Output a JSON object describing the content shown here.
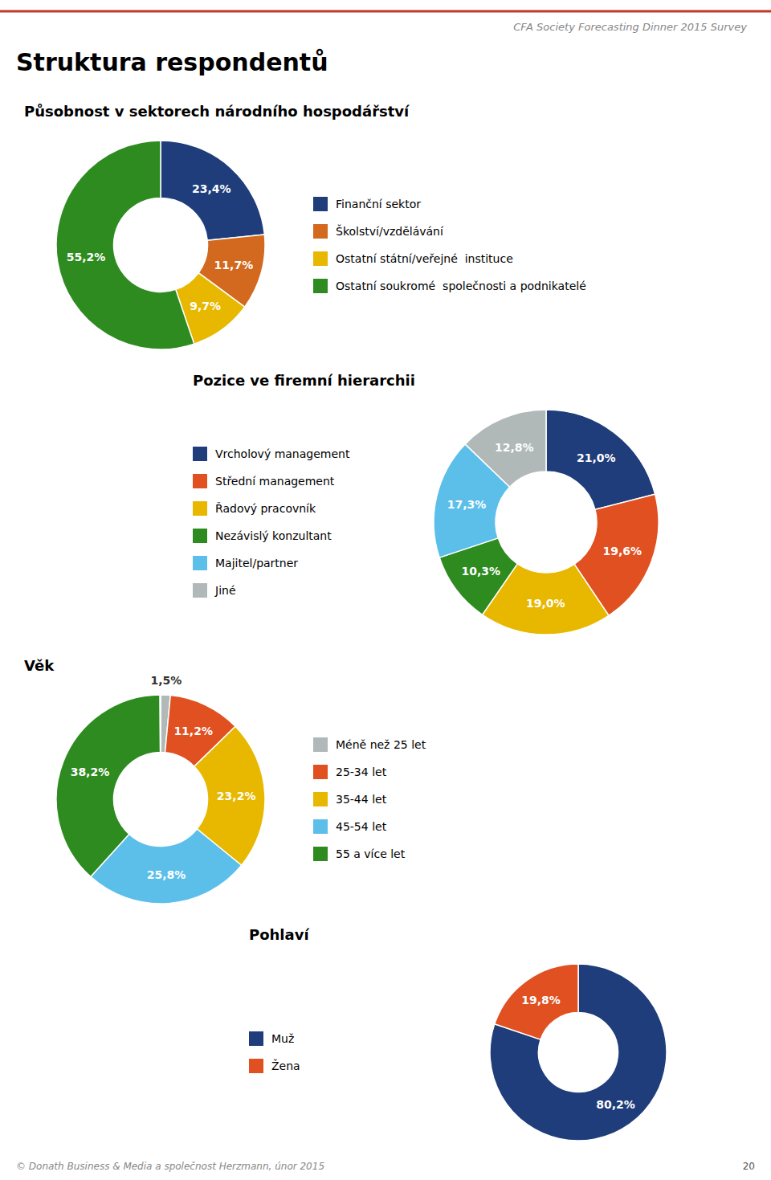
{
  "title": "Struktura respondentů",
  "subtitle": "CFA Society Forecasting Dinner 2015 Survey",
  "annotations": [
    "© Donath Business & Media a společnost Herzmann, únor 2015",
    "20"
  ],
  "chart_data": [
    {
      "type": "pie",
      "title": "Působnost v sektorech národního hospodářství",
      "categories": [
        "Finanční sektor",
        "Školství/vzdělávání",
        "Ostatní státní/veřejné  instituce",
        "Ostatní soukromé  společnosti a podnikatelé"
      ],
      "values": [
        23.4,
        11.7,
        9.7,
        55.2
      ],
      "value_labels": [
        "23,4%",
        "11,7%",
        "9,7%",
        "55,2%"
      ],
      "colors": [
        "#1f3d7a",
        "#d2691e",
        "#e8b800",
        "#2e8b20"
      ],
      "data_labels": true,
      "legend": "right"
    },
    {
      "type": "pie",
      "title": "Pozice ve firemní hierarchii",
      "categories": [
        "Vrcholový management",
        "Střední management",
        "Řadový pracovník",
        "Nezávislý konzultant",
        "Majitel/partner",
        "Jiné"
      ],
      "values": [
        21.0,
        19.6,
        19.0,
        10.3,
        17.3,
        12.8
      ],
      "value_labels": [
        "21,0%",
        "19,6%",
        "19,0%",
        "10,3%",
        "17,3%",
        "12,8%"
      ],
      "colors": [
        "#1f3d7a",
        "#e05020",
        "#e8b800",
        "#2e8b20",
        "#5bbfea",
        "#b0b8b8"
      ],
      "data_labels": true,
      "legend": "left"
    },
    {
      "type": "pie",
      "title": "Věk",
      "categories": [
        "Méně než 25 let",
        "25-34 let",
        "35-44 let",
        "45-54 let",
        "55 a více let",
        null
      ],
      "values": [
        1.5,
        11.2,
        23.2,
        25.8,
        38.2,
        0.1
      ],
      "value_labels": [
        "1,5%",
        "11,2%",
        "23,2%",
        "25,8%",
        "38,2%",
        null
      ],
      "colors": [
        "#b0b8b8",
        "#e05020",
        "#e8b800",
        "#5bbfea",
        "#2e8b20",
        "#ffffff"
      ],
      "data_labels": true,
      "legend": "right"
    },
    {
      "type": "pie",
      "title": "Pohlaví",
      "categories": [
        "Muž",
        "Žena"
      ],
      "values": [
        80.2,
        19.8
      ],
      "value_labels": [
        "80,2%",
        "19,8%"
      ],
      "colors": [
        "#1f3d7a",
        "#e05020"
      ],
      "data_labels": true,
      "legend": "left"
    }
  ]
}
